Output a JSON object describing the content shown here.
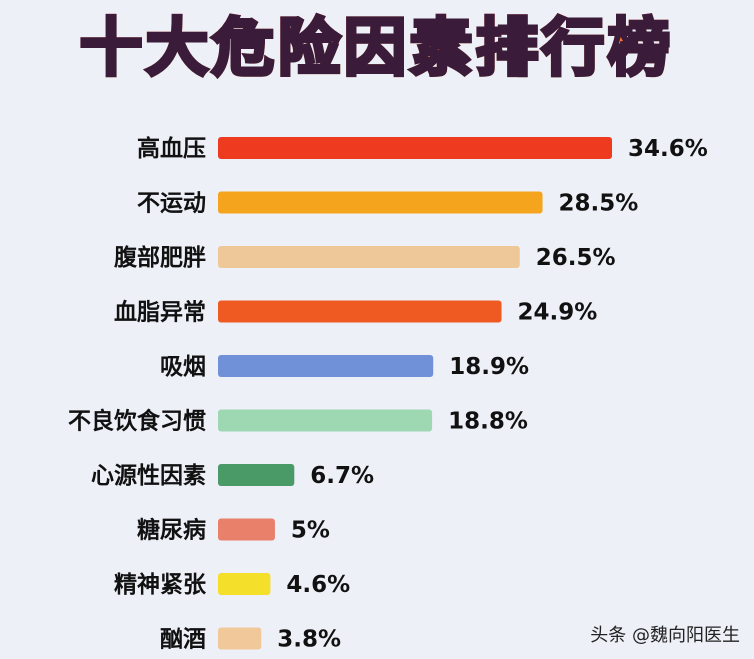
{
  "title": "十大危险因素排行榜",
  "watermark": "头条 @魏向阳医生",
  "chart_data": {
    "type": "bar",
    "orientation": "horizontal",
    "title": "十大危险因素排行榜",
    "xlabel": "",
    "ylabel": "",
    "xlim": [
      0,
      34.6
    ],
    "grid": false,
    "categories": [
      "高血压",
      "不运动",
      "腹部肥胖",
      "血脂异常",
      "吸烟",
      "不良饮食习惯",
      "心源性因素",
      "糖尿病",
      "精神紧张",
      "酗酒"
    ],
    "values": [
      34.6,
      28.5,
      26.5,
      24.9,
      18.9,
      18.8,
      6.7,
      5,
      4.6,
      3.8
    ],
    "value_labels": [
      "34.6%",
      "28.5%",
      "26.5%",
      "24.9%",
      "18.9%",
      "18.8%",
      "6.7%",
      "5%",
      "4.6%",
      "3.8%"
    ],
    "colors": [
      "#ee3a1e",
      "#f5a41e",
      "#eec898",
      "#ef5a22",
      "#7090d8",
      "#9ed8b2",
      "#4a9a68",
      "#e8806a",
      "#f4e02a",
      "#f0c89a"
    ]
  }
}
